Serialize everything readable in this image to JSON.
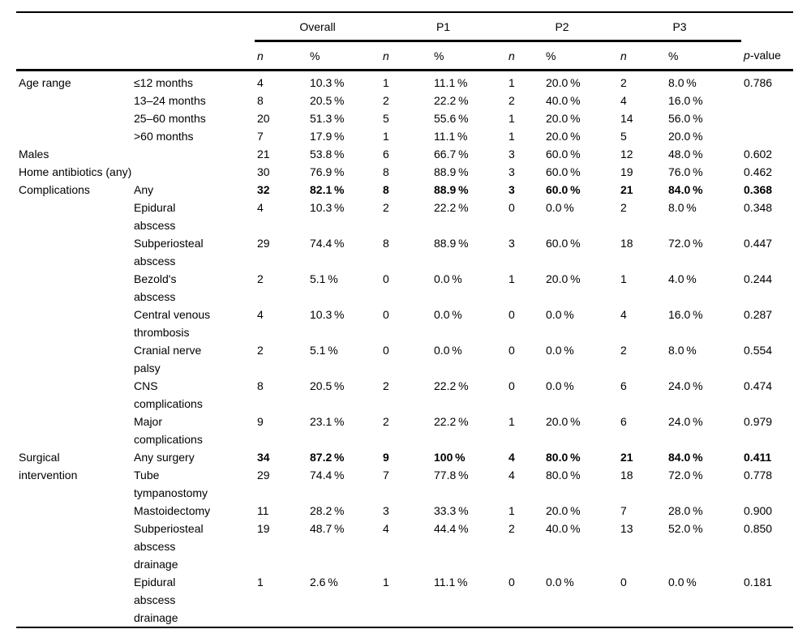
{
  "colors": {
    "text": "#000000",
    "rule": "#000000",
    "background": "#ffffff"
  },
  "table": {
    "header": {
      "groups": [
        {
          "label": "Overall"
        },
        {
          "label": "P1"
        },
        {
          "label": "P2"
        },
        {
          "label": "P3"
        }
      ],
      "n_label": "n",
      "pct_label": "%",
      "p_label_italic": "p",
      "p_label_rest": "-value"
    },
    "rows": [
      {
        "category": "Age range",
        "cat_rowspan": 4,
        "cat_colspan": 1,
        "label": "≤12 months",
        "cells": [
          "4",
          "10.3 %",
          "1",
          "11.1 %",
          "1",
          "20.0 %",
          "2",
          "8.0 %",
          "0.786"
        ],
        "bold": false
      },
      {
        "category": null,
        "label": "13–24 months",
        "cells": [
          "8",
          "20.5 %",
          "2",
          "22.2 %",
          "2",
          "40.0 %",
          "4",
          "16.0 %",
          ""
        ],
        "bold": false
      },
      {
        "category": null,
        "label": "25–60 months",
        "cells": [
          "20",
          "51.3 %",
          "5",
          "55.6 %",
          "1",
          "20.0 %",
          "14",
          "56.0 %",
          ""
        ],
        "bold": false
      },
      {
        "category": null,
        "label": ">60 months",
        "cells": [
          "7",
          "17.9 %",
          "1",
          "11.1 %",
          "1",
          "20.0 %",
          "5",
          "20.0 %",
          ""
        ],
        "bold": false
      },
      {
        "category": "Males",
        "cat_rowspan": 1,
        "cat_colspan": 2,
        "label": null,
        "cells": [
          "21",
          "53.8 %",
          "6",
          "66.7 %",
          "3",
          "60.0 %",
          "12",
          "48.0 %",
          "0.602"
        ],
        "bold": false
      },
      {
        "category": "Home antibiotics (any)",
        "cat_rowspan": 1,
        "cat_colspan": 2,
        "label": null,
        "cells": [
          "30",
          "76.9 %",
          "8",
          "88.9 %",
          "3",
          "60.0 %",
          "19",
          "76.0 %",
          "0.462"
        ],
        "bold": false
      },
      {
        "category": "Complications",
        "cat_rowspan": 8,
        "cat_colspan": 1,
        "label": "Any",
        "cells": [
          "32",
          "82.1 %",
          "8",
          "88.9 %",
          "3",
          "60.0 %",
          "21",
          "84.0 %",
          "0.368"
        ],
        "bold": true
      },
      {
        "category": null,
        "label": "Epidural\nabscess",
        "cells": [
          "4",
          "10.3 %",
          "2",
          "22.2 %",
          "0",
          "0.0 %",
          "2",
          "8.0 %",
          "0.348"
        ],
        "bold": false
      },
      {
        "category": null,
        "label": "Subperiosteal\nabscess",
        "cells": [
          "29",
          "74.4 %",
          "8",
          "88.9 %",
          "3",
          "60.0 %",
          "18",
          "72.0 %",
          "0.447"
        ],
        "bold": false
      },
      {
        "category": null,
        "label": "Bezold's\nabscess",
        "cells": [
          "2",
          "5.1 %",
          "0",
          "0.0 %",
          "1",
          "20.0 %",
          "1",
          "4.0 %",
          "0.244"
        ],
        "bold": false
      },
      {
        "category": null,
        "label": "Central venous\nthrombosis",
        "cells": [
          "4",
          "10.3 %",
          "0",
          "0.0 %",
          "0",
          "0.0 %",
          "4",
          "16.0 %",
          "0.287"
        ],
        "bold": false
      },
      {
        "category": null,
        "label": "Cranial nerve\npalsy",
        "cells": [
          "2",
          "5.1 %",
          "0",
          "0.0 %",
          "0",
          "0.0 %",
          "2",
          "8.0 %",
          "0.554"
        ],
        "bold": false
      },
      {
        "category": null,
        "label": "CNS\ncomplications",
        "cells": [
          "8",
          "20.5 %",
          "2",
          "22.2 %",
          "0",
          "0.0 %",
          "6",
          "24.0 %",
          "0.474"
        ],
        "bold": false
      },
      {
        "category": null,
        "label": "Major\ncomplications",
        "cells": [
          "9",
          "23.1 %",
          "2",
          "22.2 %",
          "1",
          "20.0 %",
          "6",
          "24.0 %",
          "0.979"
        ],
        "bold": false
      },
      {
        "category": "Surgical\nintervention",
        "cat_rowspan": 5,
        "cat_colspan": 1,
        "label": "Any surgery",
        "cells": [
          "34",
          "87.2 %",
          "9",
          "100 %",
          "4",
          "80.0 %",
          "21",
          "84.0 %",
          "0.411"
        ],
        "bold": true
      },
      {
        "category": null,
        "label": "Tube\ntympanostomy",
        "cells": [
          "29",
          "74.4 %",
          "7",
          "77.8 %",
          "4",
          "80.0 %",
          "18",
          "72.0 %",
          "0.778"
        ],
        "bold": false
      },
      {
        "category": null,
        "label": "Mastoidectomy",
        "cells": [
          "11",
          "28.2 %",
          "3",
          "33.3 %",
          "1",
          "20.0 %",
          "7",
          "28.0 %",
          "0.900"
        ],
        "bold": false
      },
      {
        "category": null,
        "label": "Subperiosteal\nabscess\ndrainage",
        "cells": [
          "19",
          "48.7 %",
          "4",
          "44.4 %",
          "2",
          "40.0 %",
          "13",
          "52.0 %",
          "0.850"
        ],
        "bold": false
      },
      {
        "category": null,
        "label": "Epidural\nabscess\ndrainage",
        "cells": [
          "1",
          "2.6 %",
          "1",
          "11.1 %",
          "0",
          "0.0 %",
          "0",
          "0.0 %",
          "0.181"
        ],
        "bold": false
      }
    ]
  }
}
